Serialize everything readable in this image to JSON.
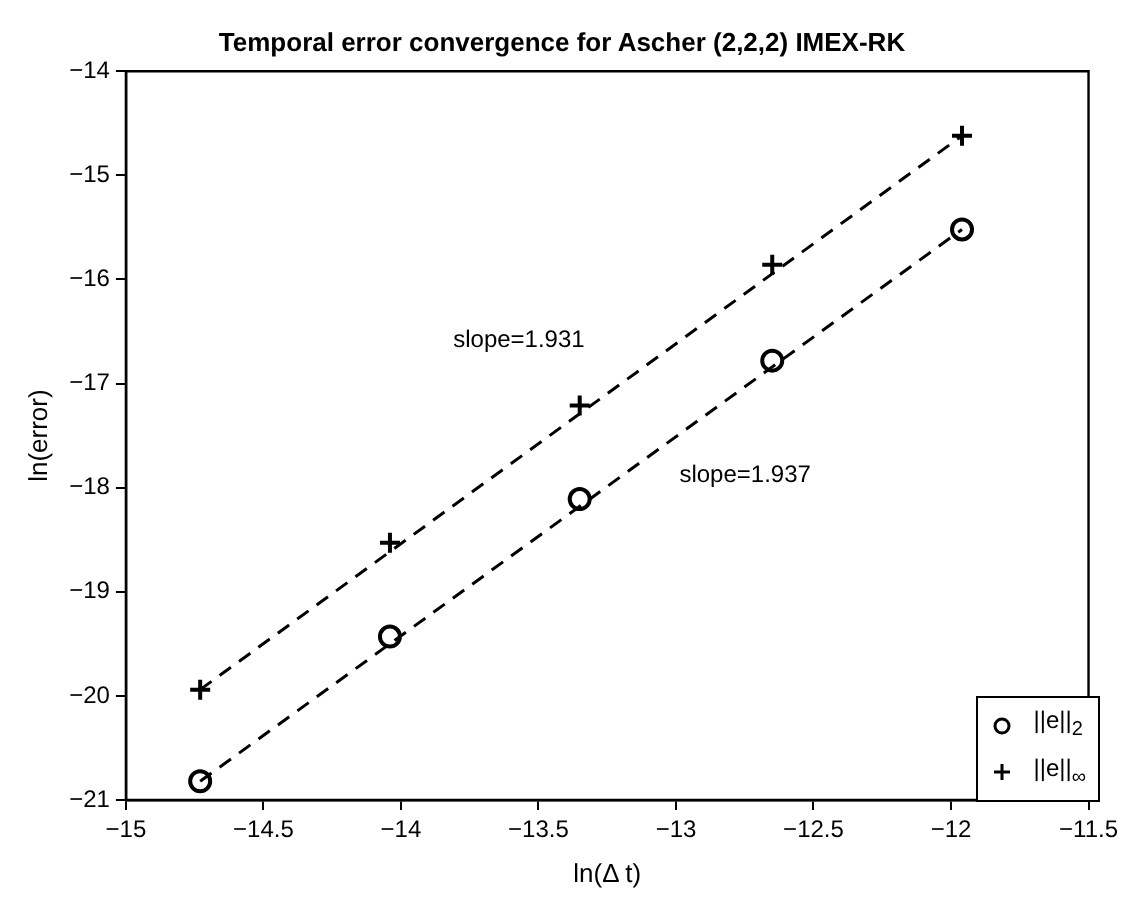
{
  "chart_data": {
    "type": "scatter",
    "title": "Temporal error convergence for Ascher (2,2,2) IMEX-RK",
    "xlabel": "ln(Δ t)",
    "ylabel": "ln(error)",
    "xlim": [
      -15,
      -11.5
    ],
    "xticks": [
      -15,
      -14.5,
      -14,
      -13.5,
      -13,
      -12.5,
      -12,
      -11.5
    ],
    "ylim": [
      -21,
      -14
    ],
    "yticks": [
      -21,
      -20,
      -19,
      -18,
      -17,
      -16,
      -15,
      -14
    ],
    "grid": false,
    "legend": "bottom right",
    "series": [
      {
        "name": "||e||$_{2}$",
        "color": "#000000",
        "marker": "circle",
        "x": [
          -14.73,
          -14.04,
          -13.35,
          -12.65,
          -11.96
        ],
        "values": [
          -20.82,
          -19.43,
          -18.11,
          -16.78,
          -15.52
        ]
      },
      {
        "name": "||e||$_{∞}$",
        "color": "#000000",
        "marker": "cross",
        "x": [
          -14.73,
          -14.04,
          -13.35,
          -12.65,
          -11.96
        ],
        "values": [
          -19.94,
          -18.53,
          -17.21,
          -15.86,
          -14.62
        ]
      },
      {
        "type": "line",
        "line_style": "dashed",
        "color": "#000000",
        "x": [
          -14.73,
          -11.96
        ],
        "values": [
          -20.82,
          -15.52
        ]
      },
      {
        "type": "line",
        "line_style": "dashed",
        "color": "#000000",
        "x": [
          -14.73,
          -11.96
        ],
        "values": [
          -19.94,
          -14.62
        ]
      }
    ],
    "annotations": [
      "slope=1.931",
      "slope=1.937"
    ]
  }
}
